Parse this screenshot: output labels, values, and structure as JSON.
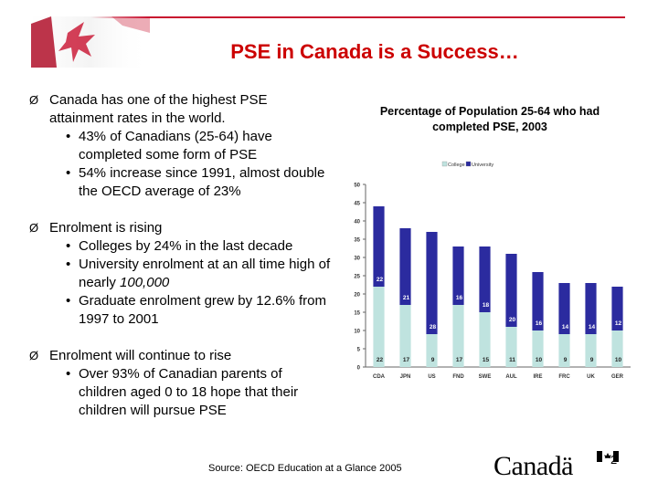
{
  "slide": {
    "title": "PSE in Canada is a Success…",
    "bullets": [
      {
        "text": "Canada has one of the highest PSE attainment rates in the world.",
        "sub": [
          "43% of Canadians (25-64) have completed some form of PSE",
          "54% increase since 1991, almost double the OECD average of 23%"
        ]
      },
      {
        "text": "Enrolment is rising",
        "sub": [
          "Colleges by 24% in the last decade",
          "University enrolment at an all time high of nearly ",
          "Graduate enrolment grew by 12.6% from 1997 to 2001"
        ],
        "sub_italic": "100,000"
      },
      {
        "text": "Enrolment will continue to rise",
        "sub": [
          "Over 93% of Canadian parents of children aged 0 to 18 hope that their children will pursue PSE"
        ]
      }
    ],
    "source": "Source: OECD Education at a Glance 2005",
    "wordmark": "Canadä",
    "page_number": "2",
    "bullet_glyph": "Ø",
    "sub_bullet_glyph": "•"
  },
  "chart_data": {
    "type": "bar",
    "stacked": true,
    "title": "Percentage of Population 25-64 who had completed PSE, 2003",
    "categories": [
      "CDA",
      "JPN",
      "US",
      "FND",
      "SWE",
      "AUL",
      "IRE",
      "FRC",
      "UK",
      "GER"
    ],
    "series": [
      {
        "name": "College",
        "values": [
          22,
          17,
          9,
          17,
          15,
          11,
          10,
          9,
          9,
          10
        ],
        "color": "#bfe3df"
      },
      {
        "name": "University",
        "values": [
          22,
          21,
          28,
          16,
          18,
          20,
          16,
          14,
          14,
          12
        ],
        "color": "#2b2b9f"
      }
    ],
    "ylim": [
      0,
      50
    ],
    "yticks": [
      0,
      5,
      10,
      15,
      20,
      25,
      30,
      35,
      40,
      45,
      50
    ],
    "legend": "top-center",
    "grid": false
  }
}
